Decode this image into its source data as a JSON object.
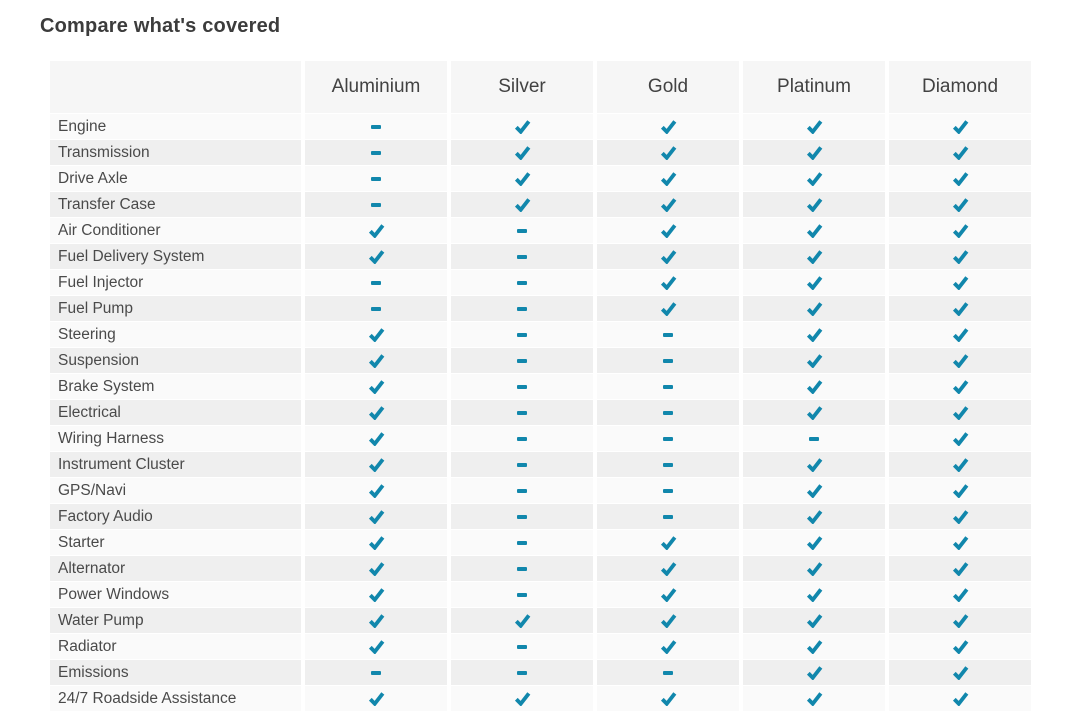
{
  "page": {
    "title": "Compare what's covered"
  },
  "table": {
    "plans": [
      "Aluminium",
      "Silver",
      "Gold",
      "Platinum",
      "Diamond"
    ],
    "value_legend": {
      "check": "covered (check-icon)",
      "dash": "not covered (dash-icon)"
    },
    "colors": {
      "accent_teal": "#1187ac",
      "header_bg": "#f6f6f6",
      "row_odd_bg": "#fafafa",
      "row_even_bg": "#efefef",
      "title_text": "#3c3c3c",
      "header_text": "#424242",
      "label_text": "#4a4a4a"
    },
    "rows": [
      {
        "label": "Engine",
        "coverage": [
          "dash",
          "check",
          "check",
          "check",
          "check"
        ]
      },
      {
        "label": "Transmission",
        "coverage": [
          "dash",
          "check",
          "check",
          "check",
          "check"
        ]
      },
      {
        "label": "Drive Axle",
        "coverage": [
          "dash",
          "check",
          "check",
          "check",
          "check"
        ]
      },
      {
        "label": "Transfer Case",
        "coverage": [
          "dash",
          "check",
          "check",
          "check",
          "check"
        ]
      },
      {
        "label": "Air Conditioner",
        "coverage": [
          "check",
          "dash",
          "check",
          "check",
          "check"
        ]
      },
      {
        "label": "Fuel Delivery System",
        "coverage": [
          "check",
          "dash",
          "check",
          "check",
          "check"
        ]
      },
      {
        "label": "Fuel Injector",
        "coverage": [
          "dash",
          "dash",
          "check",
          "check",
          "check"
        ]
      },
      {
        "label": "Fuel Pump",
        "coverage": [
          "dash",
          "dash",
          "check",
          "check",
          "check"
        ]
      },
      {
        "label": "Steering",
        "coverage": [
          "check",
          "dash",
          "dash",
          "check",
          "check"
        ]
      },
      {
        "label": "Suspension",
        "coverage": [
          "check",
          "dash",
          "dash",
          "check",
          "check"
        ]
      },
      {
        "label": "Brake System",
        "coverage": [
          "check",
          "dash",
          "dash",
          "check",
          "check"
        ]
      },
      {
        "label": "Electrical",
        "coverage": [
          "check",
          "dash",
          "dash",
          "check",
          "check"
        ]
      },
      {
        "label": "Wiring Harness",
        "coverage": [
          "check",
          "dash",
          "dash",
          "dash",
          "check"
        ]
      },
      {
        "label": "Instrument Cluster",
        "coverage": [
          "check",
          "dash",
          "dash",
          "check",
          "check"
        ]
      },
      {
        "label": "GPS/Navi",
        "coverage": [
          "check",
          "dash",
          "dash",
          "check",
          "check"
        ]
      },
      {
        "label": "Factory Audio",
        "coverage": [
          "check",
          "dash",
          "dash",
          "check",
          "check"
        ]
      },
      {
        "label": "Starter",
        "coverage": [
          "check",
          "dash",
          "check",
          "check",
          "check"
        ]
      },
      {
        "label": "Alternator",
        "coverage": [
          "check",
          "dash",
          "check",
          "check",
          "check"
        ]
      },
      {
        "label": "Power Windows",
        "coverage": [
          "check",
          "dash",
          "check",
          "check",
          "check"
        ]
      },
      {
        "label": "Water Pump",
        "coverage": [
          "check",
          "check",
          "check",
          "check",
          "check"
        ]
      },
      {
        "label": "Radiator",
        "coverage": [
          "check",
          "dash",
          "check",
          "check",
          "check"
        ]
      },
      {
        "label": "Emissions",
        "coverage": [
          "dash",
          "dash",
          "dash",
          "check",
          "check"
        ]
      },
      {
        "label": "24/7 Roadside Assistance",
        "coverage": [
          "check",
          "check",
          "check",
          "check",
          "check"
        ]
      }
    ]
  }
}
